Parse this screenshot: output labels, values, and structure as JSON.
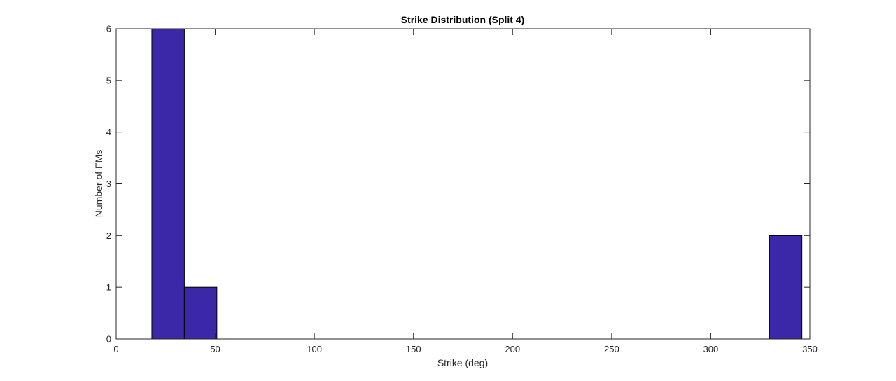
{
  "chart_data": {
    "type": "bar",
    "title": "Strike Distribution (Split 4)",
    "xlabel": "Strike (deg)",
    "ylabel": "Number of FMs",
    "xlim": [
      0,
      350
    ],
    "ylim": [
      0,
      6
    ],
    "xticks": [
      0,
      50,
      100,
      150,
      200,
      250,
      300,
      350
    ],
    "yticks": [
      0,
      1,
      2,
      3,
      4,
      5,
      6
    ],
    "grid": false,
    "bar_color": "#3b28a8",
    "bins": [
      {
        "from": 18,
        "to": 34.4,
        "count": 6
      },
      {
        "from": 34.4,
        "to": 50.8,
        "count": 1
      },
      {
        "from": 50.8,
        "to": 67.2,
        "count": 0
      },
      {
        "from": 67.2,
        "to": 83.6,
        "count": 0
      },
      {
        "from": 83.6,
        "to": 100,
        "count": 0
      },
      {
        "from": 100,
        "to": 116.4,
        "count": 0
      },
      {
        "from": 116.4,
        "to": 132.8,
        "count": 0
      },
      {
        "from": 132.8,
        "to": 149.2,
        "count": 0
      },
      {
        "from": 149.2,
        "to": 165.6,
        "count": 0
      },
      {
        "from": 165.6,
        "to": 182,
        "count": 0
      },
      {
        "from": 182,
        "to": 198.4,
        "count": 0
      },
      {
        "from": 198.4,
        "to": 214.8,
        "count": 0
      },
      {
        "from": 214.8,
        "to": 231.2,
        "count": 0
      },
      {
        "from": 231.2,
        "to": 247.6,
        "count": 0
      },
      {
        "from": 247.6,
        "to": 264,
        "count": 0
      },
      {
        "from": 264,
        "to": 280.4,
        "count": 0
      },
      {
        "from": 280.4,
        "to": 296.8,
        "count": 0
      },
      {
        "from": 296.8,
        "to": 313.2,
        "count": 0
      },
      {
        "from": 313.2,
        "to": 329.6,
        "count": 0
      },
      {
        "from": 329.6,
        "to": 346,
        "count": 2
      }
    ]
  }
}
